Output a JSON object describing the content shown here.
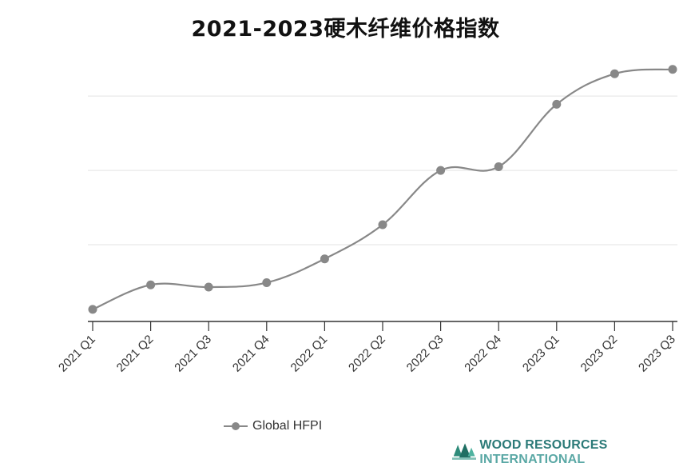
{
  "title": "2021-2023硬木纤维价格指数",
  "chart_data": {
    "type": "line",
    "categories": [
      "2021 Q1",
      "2021 Q2",
      "2021 Q3",
      "2021 Q4",
      "2022 Q1",
      "2022 Q2",
      "2022 Q3",
      "2022 Q4",
      "2023 Q1",
      "2023 Q2",
      "2023 Q3"
    ],
    "series": [
      {
        "name": "Global HFPI",
        "values": [
          0.13,
          0.46,
          0.43,
          0.49,
          0.81,
          1.27,
          2.0,
          2.05,
          2.89,
          3.3,
          3.36
        ],
        "color": "#888888"
      }
    ],
    "ylim": [
      0,
      3.4
    ],
    "y_gridlines": [
      1,
      2,
      3
    ],
    "y_tick_labels_shown": false,
    "grid": "horizontal",
    "legend": "bottom-left"
  },
  "legend": {
    "label": "Global HFPI"
  },
  "logo": {
    "text_main": "WOOD RESOURCES ",
    "text_light": "INTERNATIONAL",
    "icon": "tree-icon"
  }
}
